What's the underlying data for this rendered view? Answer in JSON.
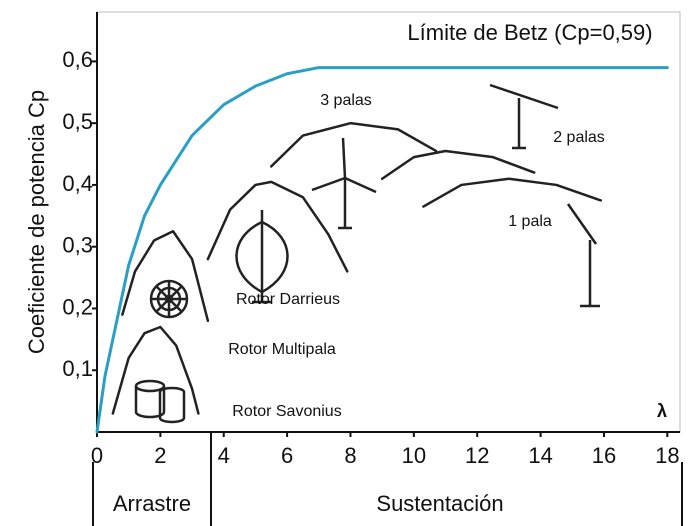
{
  "chart_data": {
    "type": "line",
    "ylabel": "Coeficiente de potencia Cp",
    "xlabel": "λ",
    "xlim": [
      0,
      18.4
    ],
    "ylim": [
      0,
      0.68
    ],
    "xticks": [
      0,
      2,
      4,
      6,
      8,
      10,
      12,
      14,
      16,
      18
    ],
    "yticks": [
      {
        "value": 0.1,
        "label": "0,1"
      },
      {
        "value": 0.2,
        "label": "0,2"
      },
      {
        "value": 0.3,
        "label": "0,3"
      },
      {
        "value": 0.4,
        "label": "0,4"
      },
      {
        "value": 0.5,
        "label": "0,5"
      },
      {
        "value": 0.6,
        "label": "0,6"
      }
    ],
    "regions": [
      "Arrastre",
      "Sustentación"
    ],
    "series": [
      {
        "name": "Límite de Betz (Cp=0,59)",
        "color": "#2a9fc4",
        "x": [
          0,
          0.25,
          0.5,
          1,
          1.5,
          2,
          3,
          4,
          5,
          6,
          7,
          8,
          18
        ],
        "values": [
          0,
          0.09,
          0.15,
          0.27,
          0.35,
          0.4,
          0.48,
          0.53,
          0.56,
          0.58,
          0.59,
          0.59,
          0.59
        ]
      },
      {
        "name": "Rotor Savonius",
        "color": "#222222",
        "x": [
          0.5,
          1,
          1.5,
          2,
          2.5,
          3,
          3.2
        ],
        "values": [
          0.03,
          0.12,
          0.16,
          0.17,
          0.14,
          0.07,
          0.03
        ]
      },
      {
        "name": "Rotor Multipala",
        "color": "#222222",
        "x": [
          0.8,
          1.2,
          1.8,
          2.4,
          3,
          3.5
        ],
        "values": [
          0.19,
          0.26,
          0.31,
          0.325,
          0.28,
          0.18
        ]
      },
      {
        "name": "Rotor Darrieus",
        "color": "#222222",
        "x": [
          3.5,
          4.2,
          5,
          5.5,
          6.5,
          7.3,
          7.9
        ],
        "values": [
          0.28,
          0.36,
          0.4,
          0.405,
          0.38,
          0.32,
          0.26
        ]
      },
      {
        "name": "3 palas",
        "color": "#222222",
        "x": [
          5.5,
          6.5,
          8,
          9.5,
          10.7
        ],
        "values": [
          0.43,
          0.48,
          0.5,
          0.49,
          0.455
        ]
      },
      {
        "name": "2 palas",
        "color": "#222222",
        "x": [
          9,
          10,
          11,
          12.5,
          13.8
        ],
        "values": [
          0.41,
          0.445,
          0.455,
          0.445,
          0.42
        ]
      },
      {
        "name": "1 pala",
        "color": "#222222",
        "x": [
          10.3,
          11.5,
          13,
          14.5,
          15.9
        ],
        "values": [
          0.365,
          0.4,
          0.41,
          0.4,
          0.375
        ]
      }
    ]
  }
}
